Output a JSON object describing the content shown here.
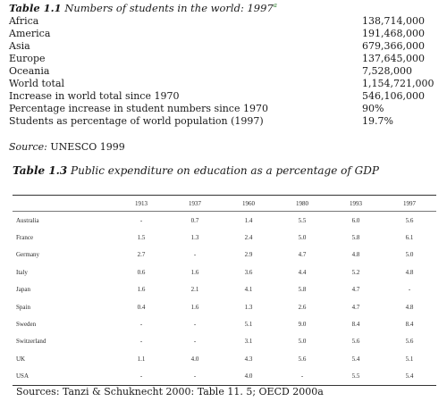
{
  "table1": {
    "label": "Table 1.1",
    "title": "Numbers of students in the world: 1997",
    "footnote_mark": "a",
    "rows": [
      {
        "label": "Africa",
        "value": "138,714,000"
      },
      {
        "label": "America",
        "value": "191,468,000"
      },
      {
        "label": "Asia",
        "value": "679,366,000"
      },
      {
        "label": "Europe",
        "value": "137,645,000"
      },
      {
        "label": "Oceania",
        "value": "7,528,000"
      },
      {
        "label": "World total",
        "value": "1,154,721,000"
      },
      {
        "label": "Increase in world total since 1970",
        "value": "546,106,000"
      },
      {
        "label": "Percentage increase in student numbers since 1970",
        "value": "90%"
      },
      {
        "label": "Students as percentage of world population (1997)",
        "value": "19.7%"
      }
    ],
    "source_label": "Source:",
    "source_text": "UNESCO 1999"
  },
  "table3": {
    "label": "Table 1.3",
    "title": "Public expenditure on education as a percentage of GDP",
    "years": [
      "1913",
      "1937",
      "1960",
      "1980",
      "1993",
      "1997"
    ],
    "rows": [
      {
        "country": "Australia",
        "values": [
          "-",
          "0.7",
          "1.4",
          "5.5",
          "6.0",
          "5.6"
        ]
      },
      {
        "country": "France",
        "values": [
          "1.5",
          "1.3",
          "2.4",
          "5.0",
          "5.8",
          "6.1"
        ]
      },
      {
        "country": "Germany",
        "values": [
          "2.7",
          "-",
          "2.9",
          "4.7",
          "4.8",
          "5.0"
        ]
      },
      {
        "country": "Italy",
        "values": [
          "0.6",
          "1.6",
          "3.6",
          "4.4",
          "5.2",
          "4.8"
        ]
      },
      {
        "country": "Japan",
        "values": [
          "1.6",
          "2.1",
          "4.1",
          "5.8",
          "4.7",
          "-"
        ]
      },
      {
        "country": "Spain",
        "values": [
          "0.4",
          "1.6",
          "1.3",
          "2.6",
          "4.7",
          "4.8"
        ]
      },
      {
        "country": "Sweden",
        "values": [
          "-",
          "-",
          "5.1",
          "9.0",
          "8.4",
          "8.4"
        ]
      },
      {
        "country": "Switzerland",
        "values": [
          "-",
          "-",
          "3.1",
          "5.0",
          "5.6",
          "5.6"
        ]
      },
      {
        "country": "UK",
        "values": [
          "1.1",
          "4.0",
          "4.3",
          "5.6",
          "5.4",
          "5.1"
        ]
      },
      {
        "country": "USA",
        "values": [
          "-",
          "-",
          "4.0",
          "-",
          "5.5",
          "5.4"
        ]
      }
    ]
  },
  "sources": "Sources: Tanzi & Schuknecht 2000: Table 11. 5; OECD 2000a"
}
